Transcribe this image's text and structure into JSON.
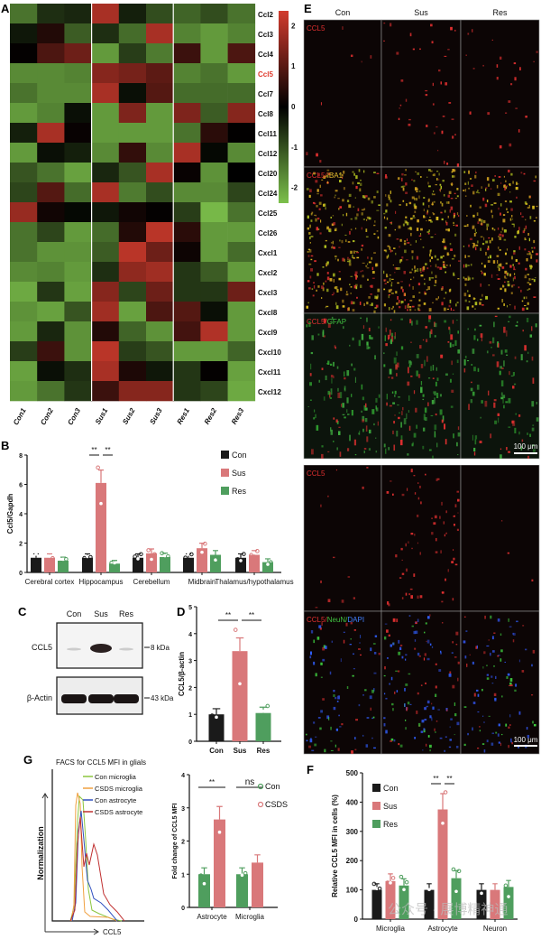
{
  "panels": {
    "A": "A",
    "B": "B",
    "C": "C",
    "D": "D",
    "E": "E",
    "F": "F",
    "G": "G"
  },
  "chart_data": [
    {
      "id": "A",
      "type": "heatmap",
      "columns": [
        "Con1",
        "Con2",
        "Con3",
        "Sus1",
        "Sus2",
        "Sus3",
        "Res1",
        "Res2",
        "Res3"
      ],
      "rows": [
        "Ccl2",
        "Ccl3",
        "Ccl4",
        "Ccl5",
        "Ccl7",
        "Ccl8",
        "Ccl11",
        "Ccl12",
        "Ccl20",
        "Ccl24",
        "Ccl25",
        "Ccl26",
        "Cxcl1",
        "Cxcl2",
        "Cxcl3",
        "Cxcl8",
        "Cxcl9",
        "Cxcl10",
        "Cxcl11",
        "Cxcl12"
      ],
      "highlight_row": "Ccl5",
      "highlight_color": "#e03a2c",
      "colorbar": {
        "ticks": [
          2,
          1,
          0,
          -1,
          -2
        ],
        "range": [
          -2.5,
          2.5
        ],
        "low_color": "#7cc04b",
        "mid_color": "#000000",
        "high_color": "#d23c2e"
      },
      "values": [
        [
          -1.5,
          -0.6,
          -0.5,
          2,
          -0.4,
          -1,
          -1.3,
          -1,
          -1.5
        ],
        [
          -0.3,
          0.4,
          -1.2,
          -0.6,
          -1.4,
          2,
          -1.7,
          -2,
          -1.7
        ],
        [
          0.05,
          0.9,
          1.3,
          -2,
          -0.8,
          -1.6,
          0.7,
          -2,
          0.9
        ],
        [
          -1.8,
          -1.8,
          -1.7,
          1.6,
          1.4,
          1.1,
          -1.7,
          -1.5,
          -2
        ],
        [
          -1.5,
          -1.8,
          -1.8,
          2,
          -0.2,
          1,
          -1.4,
          -1.4,
          -1.4
        ],
        [
          -2,
          -1.7,
          -0.2,
          -2,
          1.5,
          -2,
          1.5,
          -1.2,
          1.6
        ],
        [
          -0.4,
          2,
          0.1,
          -2,
          -2,
          -2,
          -1.5,
          0.5,
          0.02
        ],
        [
          -2,
          -0.2,
          -0.4,
          -1.8,
          0.6,
          -1.8,
          2,
          -0.1,
          -1.8
        ],
        [
          -1.1,
          -1.5,
          -2.1,
          -0.5,
          -1.1,
          2,
          0.1,
          -1.9,
          0
        ],
        [
          -0.9,
          1,
          -1.4,
          2,
          -1.6,
          -1,
          -1.8,
          -1.8,
          -0.9
        ],
        [
          1.8,
          0.2,
          -0.1,
          -0.3,
          0.2,
          0.05,
          -0.8,
          -2.4,
          -1.5
        ],
        [
          -1.5,
          -0.9,
          -2,
          -1.4,
          0.4,
          2.2,
          0.5,
          -2,
          -2
        ],
        [
          -1.5,
          -1.9,
          -1.9,
          -1.2,
          2.2,
          1.3,
          0.15,
          -2,
          -1.4
        ],
        [
          -1.8,
          -1.7,
          -2,
          -0.6,
          1.7,
          1.9,
          -0.7,
          -1.2,
          -2
        ],
        [
          -2.2,
          -0.7,
          -2.1,
          1.6,
          -0.9,
          1.3,
          -0.7,
          -0.7,
          1.3
        ],
        [
          -1.9,
          -2.1,
          -1.1,
          1.9,
          -2.1,
          0.9,
          1,
          -0.2,
          -2
        ],
        [
          -2,
          -0.5,
          -1.9,
          0.4,
          -1.3,
          -1.9,
          0.8,
          2.1,
          -2
        ],
        [
          -0.8,
          0.7,
          -1.9,
          2.2,
          -0.8,
          -1.1,
          -2,
          -2,
          -1.3
        ],
        [
          -2.1,
          -0.2,
          -0.6,
          2,
          0.35,
          -0.3,
          -0.7,
          0.05,
          -2.1
        ],
        [
          -2,
          -1.5,
          -0.7,
          0.7,
          1.6,
          1.6,
          -0.7,
          -0.9,
          -2.2
        ]
      ]
    },
    {
      "id": "B",
      "type": "bar",
      "ylabel": "Ccl5/Gapdh",
      "ylim": [
        0,
        8
      ],
      "yticks": [
        0,
        2,
        4,
        6,
        8
      ],
      "categories": [
        "Cerebral cortex",
        "Hippocampus",
        "Cerebellum",
        "Midbrain",
        "Thalamus/hypothalamus"
      ],
      "series": [
        {
          "name": "Con",
          "color": "#1a1a1a",
          "values": [
            1.0,
            1.0,
            1.0,
            1.0,
            1.0
          ]
        },
        {
          "name": "Sus",
          "color": "#d9787a",
          "values": [
            1.0,
            6.1,
            1.3,
            1.65,
            1.2
          ]
        },
        {
          "name": "Res",
          "color": "#4f9e5e",
          "values": [
            0.8,
            0.6,
            1.05,
            1.2,
            0.7
          ]
        }
      ],
      "significance": [
        {
          "category": "Hippocampus",
          "pair": [
            "Con",
            "Sus"
          ],
          "label": "**"
        },
        {
          "category": "Hippocampus",
          "pair": [
            "Sus",
            "Res"
          ],
          "label": "**"
        }
      ],
      "legend": "top-right"
    },
    {
      "id": "D",
      "type": "bar",
      "ylabel": "CCL5/β-actin",
      "ylim": [
        0,
        5
      ],
      "yticks": [
        0,
        1,
        2,
        3,
        4,
        5
      ],
      "categories": [
        "Con",
        "Sus",
        "Res"
      ],
      "colors": [
        "#1a1a1a",
        "#d9787a",
        "#4f9e5e"
      ],
      "values": [
        1.0,
        3.35,
        1.05
      ],
      "significance": [
        {
          "pair": [
            "Con",
            "Sus"
          ],
          "label": "**"
        },
        {
          "pair": [
            "Sus",
            "Res"
          ],
          "label": "**"
        }
      ]
    },
    {
      "id": "G",
      "type": "bar",
      "ylabel": "Fold change of CCL5 MFI",
      "ylim": [
        0,
        4
      ],
      "yticks": [
        0,
        1,
        2,
        3,
        4
      ],
      "categories": [
        "Astrocyte",
        "Microglia"
      ],
      "series": [
        {
          "name": "Con",
          "color": "#4f9e5e",
          "values": [
            1.0,
            1.0
          ]
        },
        {
          "name": "CSDS",
          "color": "#d9787a",
          "values": [
            2.65,
            1.35
          ]
        }
      ],
      "significance": [
        {
          "category": "Astrocyte",
          "label": "**"
        },
        {
          "category": "Microglia",
          "label": "ns"
        }
      ],
      "legend": "top-right"
    },
    {
      "id": "F",
      "type": "bar",
      "ylabel": "Relative CCL5 MFI in cells (%)",
      "ylim": [
        0,
        500
      ],
      "yticks": [
        0,
        100,
        200,
        300,
        400,
        500
      ],
      "categories": [
        "Microglia",
        "Astrocyte",
        "Neuron"
      ],
      "series": [
        {
          "name": "Con",
          "color": "#1a1a1a",
          "values": [
            100,
            100,
            100
          ]
        },
        {
          "name": "Sus",
          "color": "#d9787a",
          "values": [
            130,
            375,
            100
          ]
        },
        {
          "name": "Res",
          "color": "#4f9e5e",
          "values": [
            115,
            140,
            110
          ]
        }
      ],
      "significance": [
        {
          "category": "Astrocyte",
          "pair": [
            "Con",
            "Sus"
          ],
          "label": "**"
        },
        {
          "category": "Astrocyte",
          "pair": [
            "Sus",
            "Res"
          ],
          "label": "**"
        }
      ],
      "legend": "top-left"
    }
  ],
  "blot": {
    "lanes": [
      "Con",
      "Sus",
      "Res"
    ],
    "rows": [
      {
        "label": "CCL5",
        "marker": "8 kDa"
      },
      {
        "label": "β-Actin",
        "marker": "43 kDa"
      }
    ]
  },
  "histogram": {
    "title": "FACS for CCL5 MFI  in glials",
    "xlabel": "CCL5",
    "ylabel": "Normalization",
    "legend": [
      {
        "name": "Con microglia",
        "color": "#8cc63f"
      },
      {
        "name": "CSDS microglia",
        "color": "#f0a040"
      },
      {
        "name": "Con astrocyte",
        "color": "#3050c0"
      },
      {
        "name": "CSDS astrocyte",
        "color": "#c03030"
      }
    ]
  },
  "microscopy": {
    "columns": [
      "Con",
      "Sus",
      "Res"
    ],
    "rows": [
      {
        "stains": [
          {
            "text": "CCL5",
            "color": "#e03030"
          }
        ]
      },
      {
        "stains": [
          {
            "text": "CCL5",
            "color": "#e03030"
          },
          {
            "text": "/",
            "color": "#e03030"
          },
          {
            "text": "IBA1",
            "color": "#e8c030"
          }
        ]
      },
      {
        "stains": [
          {
            "text": "CCL5",
            "color": "#e03030"
          },
          {
            "text": "/",
            "color": "#e03030"
          },
          {
            "text": "GFAP",
            "color": "#40c040"
          }
        ]
      },
      {
        "stains": [
          {
            "text": "CCL5",
            "color": "#e03030"
          }
        ]
      },
      {
        "stains": [
          {
            "text": "CCL5",
            "color": "#e03030"
          },
          {
            "text": "/",
            "color": "#e03030"
          },
          {
            "text": "NeuN",
            "color": "#40c040"
          },
          {
            "text": "/",
            "color": "#40c040"
          },
          {
            "text": "DAPI",
            "color": "#4080ff"
          }
        ]
      }
    ],
    "scale_bar": "100 μm"
  },
  "watermark": "公众号 · 展博精神通"
}
